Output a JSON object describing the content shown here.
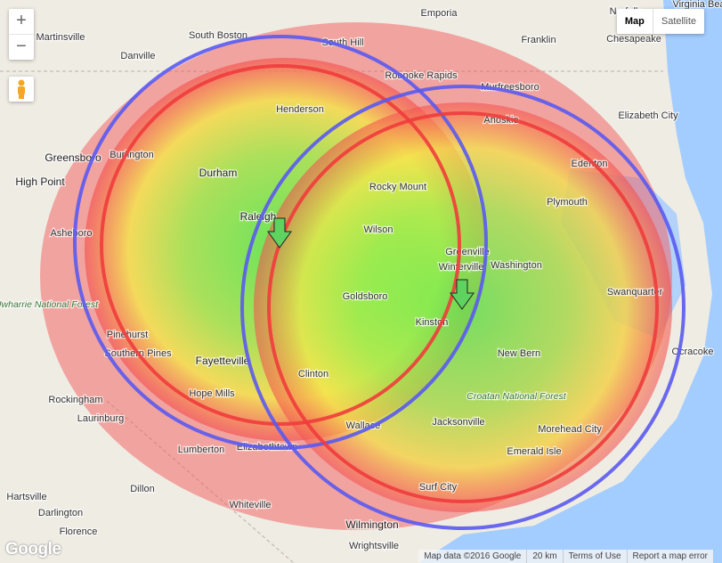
{
  "controls": {
    "zoom_in": "+",
    "zoom_out": "−",
    "map_type": [
      "Map",
      "Satellite"
    ]
  },
  "places": [
    "Virginia Bea",
    "Norfolk",
    "Chesapeake",
    "Martinsville",
    "South Boston",
    "South Hill",
    "Emporia",
    "Franklin",
    "Danville",
    "Roanoke Rapids",
    "Murfreesboro",
    "Henderson",
    "Ahoskie",
    "Elizabeth City",
    "Burlington",
    "Greensboro",
    "Edenton",
    "Durham",
    "High Point",
    "Rocky Mount",
    "Plymouth",
    "Raleigh",
    "Wilson",
    "Asheboro",
    "Greenville",
    "Winterville",
    "Washington",
    "Goldsboro",
    "Swanquarter",
    "Kinston",
    "Pinehurst",
    "Southern Pines",
    "New Bern",
    "Ocracoke",
    "Fayetteville",
    "Clinton",
    "Hope Mills",
    "Rockingham",
    "Jacksonville",
    "Laurinburg",
    "Wallace",
    "Morehead City",
    "Lumberton",
    "Elizabethtown",
    "Emerald Isle",
    "Surf City",
    "Dillon",
    "Hartsville",
    "Whiteville",
    "Darlington",
    "Wilmington",
    "Florence",
    "Wrightsville"
  ],
  "parks": [
    "Uwharrie National Forest",
    "Croatan National Forest"
  ],
  "footer": [
    "Map data ©2016 Google",
    "20 km",
    "Terms of Use",
    "Report a map error"
  ],
  "logo": "Google"
}
